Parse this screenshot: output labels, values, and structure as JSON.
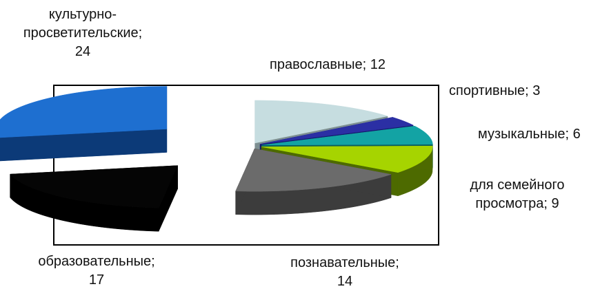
{
  "chart_data": {
    "type": "pie",
    "subtype": "exploded-3d",
    "legend": "none",
    "slices": [
      {
        "label": "православные",
        "value": 12,
        "color": "#c6dde0",
        "side": "#7d8f91"
      },
      {
        "label": "спортивные",
        "value": 3,
        "color": "#2b2fa4",
        "side": "#14176a"
      },
      {
        "label": "музыкальные",
        "value": 6,
        "color": "#13a3a4",
        "side": "#0a5e5f"
      },
      {
        "label": "для семейного просмотра",
        "value": 9,
        "color": "#a6d400",
        "side": "#4d6a00"
      },
      {
        "label": "познавательные",
        "value": 14,
        "color": "#6b6b6b",
        "side": "#3c3c3c"
      },
      {
        "label": "образовательные",
        "value": 17,
        "color": "#050505",
        "side": "#000000"
      },
      {
        "label": "культурно-просветительские",
        "value": 24,
        "color": "#1e6fd0",
        "side": "#0c3a78"
      }
    ],
    "data_labels": [
      {
        "lines": [
          "культурно-",
          "просветительские;",
          "24"
        ]
      },
      {
        "lines": [
          "православные; 12"
        ]
      },
      {
        "lines": [
          "спортивные; 3"
        ]
      },
      {
        "lines": [
          "музыкальные; 6"
        ]
      },
      {
        "lines": [
          "для семейного",
          "просмотра; 9"
        ]
      },
      {
        "lines": [
          "образовательные;",
          "17"
        ]
      },
      {
        "lines": [
          "познавательные;",
          "14"
        ]
      }
    ]
  }
}
